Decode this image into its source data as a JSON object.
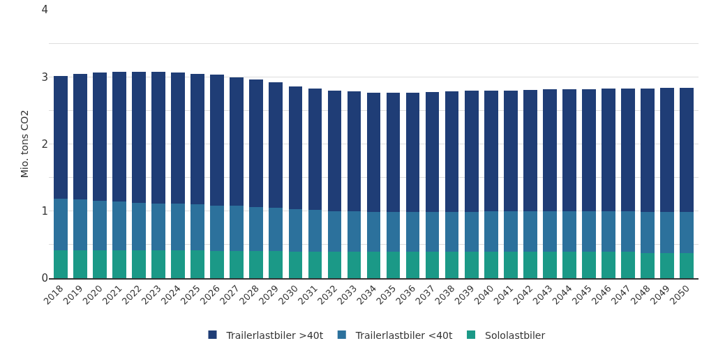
{
  "chart_data": {
    "type": "bar",
    "stacked": true,
    "ylabel": "Mio. tons CO2",
    "categories": [
      "2018",
      "2019",
      "2020",
      "2021",
      "2022",
      "2023",
      "2024",
      "2025",
      "2026",
      "2027",
      "2028",
      "2029",
      "2030",
      "2031",
      "2032",
      "2033",
      "2034",
      "2035",
      "2036",
      "2037",
      "2038",
      "2039",
      "2040",
      "2041",
      "2042",
      "2043",
      "2044",
      "2045",
      "2046",
      "2047",
      "2048",
      "2049",
      "2050"
    ],
    "series": [
      {
        "name": "Sololastbiler",
        "color": "#1b9987",
        "values": [
          0.42,
          0.42,
          0.42,
          0.42,
          0.42,
          0.42,
          0.42,
          0.42,
          0.41,
          0.41,
          0.41,
          0.41,
          0.39,
          0.39,
          0.39,
          0.39,
          0.39,
          0.39,
          0.39,
          0.39,
          0.39,
          0.39,
          0.39,
          0.39,
          0.39,
          0.39,
          0.39,
          0.39,
          0.39,
          0.39,
          0.37,
          0.37,
          0.37
        ]
      },
      {
        "name": "Trailerlastbiler <40t",
        "color": "#2c719c",
        "values": [
          0.76,
          0.75,
          0.73,
          0.72,
          0.7,
          0.69,
          0.69,
          0.68,
          0.67,
          0.67,
          0.65,
          0.64,
          0.64,
          0.63,
          0.61,
          0.61,
          0.6,
          0.6,
          0.6,
          0.6,
          0.6,
          0.6,
          0.61,
          0.61,
          0.61,
          0.61,
          0.61,
          0.61,
          0.61,
          0.61,
          0.62,
          0.62,
          0.62
        ]
      },
      {
        "name": "Trailerlastbiler >40t",
        "color": "#1f3d76",
        "values": [
          1.83,
          1.87,
          1.92,
          1.94,
          1.96,
          1.97,
          1.96,
          1.94,
          1.95,
          1.91,
          1.9,
          1.87,
          1.83,
          1.81,
          1.8,
          1.78,
          1.77,
          1.77,
          1.77,
          1.78,
          1.79,
          1.8,
          1.8,
          1.8,
          1.81,
          1.82,
          1.82,
          1.82,
          1.83,
          1.83,
          1.84,
          1.85,
          1.85
        ]
      }
    ],
    "ylim": [
      0,
      4
    ],
    "yticks": [
      0,
      {
        "value": 0.5,
        "label": null
      },
      1,
      {
        "value": 1.5,
        "label": null
      },
      2,
      {
        "value": 2.5,
        "label": null
      },
      3,
      {
        "value": 3.5,
        "label": null
      },
      4
    ],
    "grid": "y",
    "legend": "bottom"
  }
}
